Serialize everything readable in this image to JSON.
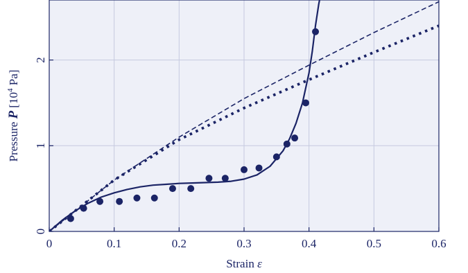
{
  "chart_data": {
    "type": "line",
    "title": "",
    "xlabel_text": "Strain",
    "xlabel_symbol": "ε",
    "ylabel_text": "Pressure",
    "ylabel_symbol": "P",
    "ylabel_unit_open": "[10",
    "ylabel_unit_exp": "4",
    "ylabel_unit_close": " Pa]",
    "xlim": [
      0,
      0.6
    ],
    "ylim": [
      0,
      2.7
    ],
    "grid": true,
    "legend": "none",
    "x_ticks": [
      {
        "value": 0,
        "label": "0"
      },
      {
        "value": 0.1,
        "label": "0.1"
      },
      {
        "value": 0.2,
        "label": "0.2"
      },
      {
        "value": 0.3,
        "label": "0.3"
      },
      {
        "value": 0.4,
        "label": "0.4"
      },
      {
        "value": 0.5,
        "label": "0.5"
      },
      {
        "value": 0.6,
        "label": "0.6"
      }
    ],
    "y_ticks": [
      {
        "value": 0,
        "label": "0"
      },
      {
        "value": 1,
        "label": "1"
      },
      {
        "value": 2,
        "label": "2"
      }
    ],
    "x_gridlines": [
      0.1,
      0.2,
      0.3,
      0.4,
      0.5
    ],
    "y_gridlines": [
      1,
      2
    ],
    "colors": {
      "ink": "#1b2466",
      "plot_bg": "#eef0f8",
      "grid": "#c5c9df"
    },
    "series": [
      {
        "style": "solid",
        "x": [
          0,
          0.02,
          0.04,
          0.06,
          0.08,
          0.1,
          0.12,
          0.14,
          0.16,
          0.18,
          0.2,
          0.22,
          0.24,
          0.26,
          0.28,
          0.3,
          0.32,
          0.34,
          0.36,
          0.37,
          0.38,
          0.39,
          0.4,
          0.405,
          0.41,
          0.415,
          0.42
        ],
        "y": [
          0,
          0.13,
          0.24,
          0.33,
          0.4,
          0.45,
          0.49,
          0.52,
          0.54,
          0.55,
          0.56,
          0.565,
          0.57,
          0.575,
          0.585,
          0.61,
          0.66,
          0.76,
          0.94,
          1.08,
          1.26,
          1.5,
          1.85,
          2.1,
          2.4,
          2.65,
          2.85
        ]
      },
      {
        "style": "dashed",
        "x": [
          0,
          0.1,
          0.2,
          0.3,
          0.4,
          0.5,
          0.6
        ],
        "y": [
          0,
          0.6,
          1.1,
          1.55,
          1.94,
          2.32,
          2.68
        ]
      },
      {
        "style": "dotted",
        "x": [
          0,
          0.1,
          0.2,
          0.3,
          0.4,
          0.5,
          0.6
        ],
        "y": [
          0,
          0.6,
          1.07,
          1.44,
          1.77,
          2.09,
          2.4
        ]
      },
      {
        "style": "markers",
        "x": [
          0.033,
          0.053,
          0.078,
          0.108,
          0.135,
          0.162,
          0.19,
          0.218,
          0.246,
          0.271,
          0.3,
          0.323,
          0.35,
          0.366,
          0.378,
          0.395,
          0.41
        ],
        "y": [
          0.15,
          0.27,
          0.35,
          0.35,
          0.39,
          0.39,
          0.5,
          0.5,
          0.62,
          0.62,
          0.72,
          0.74,
          0.87,
          1.02,
          1.09,
          1.5,
          2.33
        ]
      }
    ]
  }
}
